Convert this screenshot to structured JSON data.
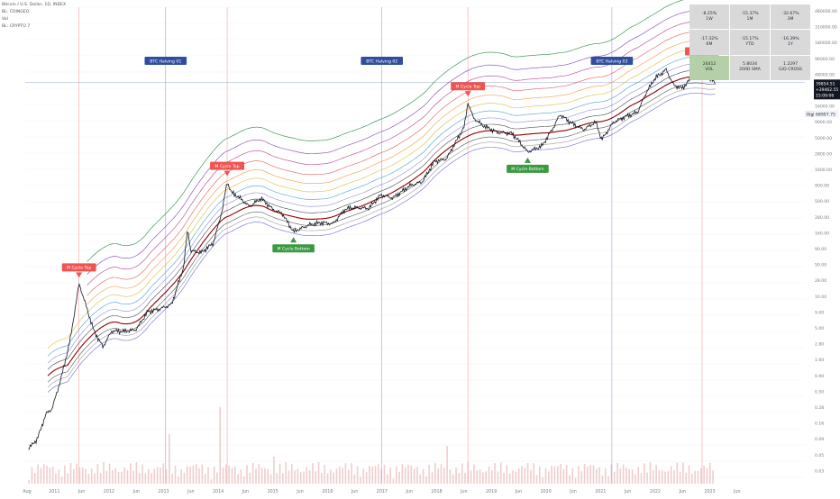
{
  "symbol": {
    "title": "Bitcoin / U.S. Dollar, 1D, INDEX",
    "indicators": [
      "BL: COINGEO",
      "Vol",
      "BL: CRYPTO 7"
    ]
  },
  "halvings": [
    "BTC Halving 01",
    "BTC Halving 02",
    "BTC Halving 03"
  ],
  "cycle_markers": {
    "top": "M Cycle Top",
    "bottom": "M Cycle Bottom"
  },
  "price_axis": {
    "labels": [
      "480000.00",
      "310000.00",
      "180000.00",
      "96000.00",
      "48000.00",
      "28000.00",
      "16000.00",
      "9000.00",
      "5000.00",
      "2800.00",
      "1600.00",
      "900.00",
      "500.00",
      "280.00",
      "160.00",
      "90.00",
      "50.00",
      "28.00",
      "16.00",
      "9.00",
      "5.00",
      "2.80",
      "1.60",
      "0.90",
      "0.50",
      "0.28",
      "0.16",
      "0.09",
      "0.05",
      "0.03"
    ],
    "high_badge": "High",
    "high_value": "68997.75",
    "current_price": "39854.51",
    "current_change": "+39462.55 (99%)",
    "current_countdown": "15:09:06"
  },
  "time_axis": [
    "Aug",
    "2011",
    "Jun",
    "2012",
    "Jun",
    "2013",
    "Jun",
    "2014",
    "Jun",
    "2015",
    "Jun",
    "2016",
    "Jun",
    "2017",
    "Jun",
    "2018",
    "Jun",
    "2019",
    "Jun",
    "2020",
    "Jun",
    "2021",
    "Jun",
    "2022",
    "Jun",
    "2023",
    "Jun"
  ],
  "stats_table": [
    {
      "value": "-8.25%",
      "label": "1W"
    },
    {
      "value": "-15.37%",
      "label": "1M"
    },
    {
      "value": "-32.67%",
      "label": "3M"
    },
    {
      "value": "-17.32%",
      "label": "6M"
    },
    {
      "value": "-15.17%",
      "label": "YTD"
    },
    {
      "value": "-16.39%",
      "label": "1Y"
    },
    {
      "value": "24412",
      "label": "VOL"
    },
    {
      "value": "5.8034",
      "label": "200D SMA"
    },
    {
      "value": "1.2297",
      "label": "G/D CROSS"
    }
  ],
  "colors": {
    "price": "#131722",
    "halving_line": "#9c9cf0",
    "cycle_line": "#f7a1a1",
    "cycle_top_bg": "#f05350",
    "cycle_bottom_bg": "#3a9a40",
    "halving_bg": "#2f4f9e",
    "bands": [
      "#1f8a3a",
      "#7b3fb5",
      "#b43c8c",
      "#e35a5a",
      "#f29a3c",
      "#d8c03a",
      "#4aa0cf",
      "#8f8fd6",
      "#4a4a4a",
      "#8b0000",
      "#555555",
      "#999999",
      "#6b6bd0"
    ],
    "volume": "#e8b2b2",
    "stats_bg": "#d9d9d9",
    "stats_highlight": "#b5cfa8"
  },
  "chart_data": {
    "type": "line",
    "title": "Bitcoin / U.S. Dollar, 1D, INDEX",
    "y_scale": "log",
    "ylim": [
      0.02,
      600000
    ],
    "xlim": [
      2010.55,
      2023.6
    ],
    "series": [
      {
        "values": [
          [
            2010.6,
            0.07
          ],
          [
            2010.75,
            0.1
          ],
          [
            2010.9,
            0.25
          ],
          [
            2011.0,
            0.3
          ],
          [
            2011.15,
            0.9
          ],
          [
            2011.3,
            3.5
          ],
          [
            2011.42,
            18
          ],
          [
            2011.45,
            28
          ],
          [
            2011.55,
            14
          ],
          [
            2011.7,
            5
          ],
          [
            2011.85,
            2.8
          ],
          [
            2012.0,
            5
          ],
          [
            2012.2,
            4.9
          ],
          [
            2012.4,
            5.2
          ],
          [
            2012.6,
            10
          ],
          [
            2012.8,
            11
          ],
          [
            2013.0,
            13
          ],
          [
            2013.2,
            50
          ],
          [
            2013.27,
            200
          ],
          [
            2013.32,
            90
          ],
          [
            2013.5,
            85
          ],
          [
            2013.7,
            120
          ],
          [
            2013.85,
            400
          ],
          [
            2013.93,
            1100
          ],
          [
            2014.0,
            750
          ],
          [
            2014.15,
            600
          ],
          [
            2014.3,
            450
          ],
          [
            2014.5,
            600
          ],
          [
            2014.7,
            400
          ],
          [
            2014.85,
            350
          ],
          [
            2015.04,
            180
          ],
          [
            2015.3,
            230
          ],
          [
            2015.5,
            250
          ],
          [
            2015.7,
            240
          ],
          [
            2015.9,
            400
          ],
          [
            2016.0,
            430
          ],
          [
            2016.3,
            420
          ],
          [
            2016.5,
            680
          ],
          [
            2016.7,
            610
          ],
          [
            2016.99,
            950
          ],
          [
            2017.2,
            1100
          ],
          [
            2017.4,
            2300
          ],
          [
            2017.6,
            2500
          ],
          [
            2017.75,
            4500
          ],
          [
            2017.9,
            8000
          ],
          [
            2017.96,
            19500
          ],
          [
            2018.05,
            11000
          ],
          [
            2018.2,
            8500
          ],
          [
            2018.45,
            6500
          ],
          [
            2018.7,
            6300
          ],
          [
            2018.88,
            4000
          ],
          [
            2018.96,
            3200
          ],
          [
            2019.2,
            4000
          ],
          [
            2019.4,
            8000
          ],
          [
            2019.5,
            12500
          ],
          [
            2019.7,
            9000
          ],
          [
            2019.9,
            7200
          ],
          [
            2020.1,
            9500
          ],
          [
            2020.2,
            5000
          ],
          [
            2020.4,
            9500
          ],
          [
            2020.6,
            11500
          ],
          [
            2020.8,
            13500
          ],
          [
            2020.95,
            28000
          ],
          [
            2021.1,
            47000
          ],
          [
            2021.28,
            63000
          ],
          [
            2021.4,
            36000
          ],
          [
            2021.55,
            32000
          ],
          [
            2021.7,
            47000
          ],
          [
            2021.85,
            66000
          ],
          [
            2021.88,
            68997.75
          ],
          [
            2021.99,
            46000
          ],
          [
            2022.1,
            39854.51
          ]
        ]
      }
    ]
  }
}
